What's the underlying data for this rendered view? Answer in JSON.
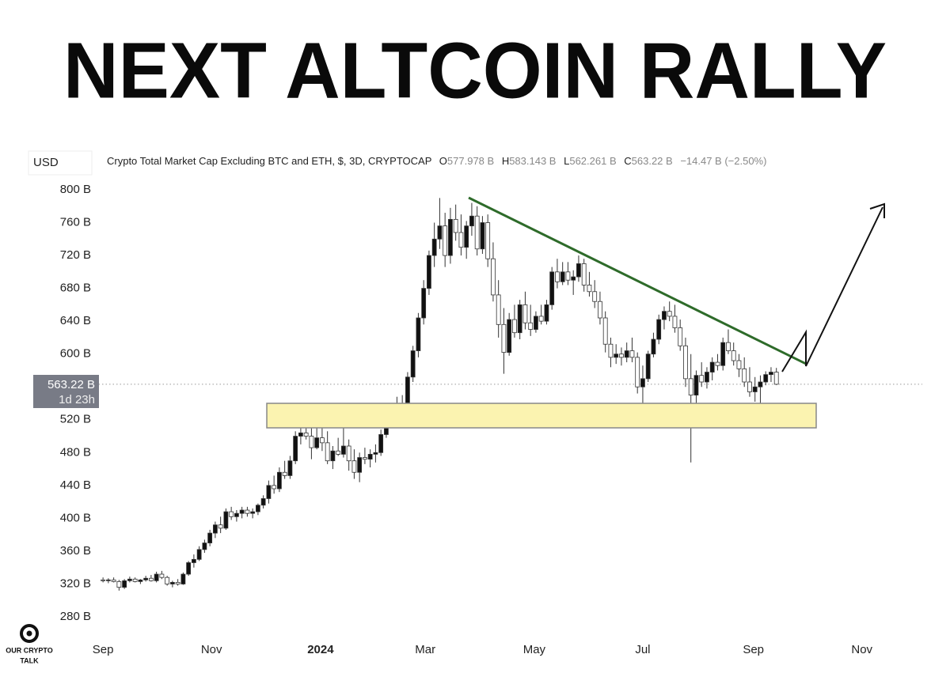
{
  "title": "NEXT ALTCOIN RALLY",
  "header": {
    "currency": "USD",
    "symbol": "Crypto Total Market Cap Excluding BTC and ETH, $, 3D, CRYPTOCAP",
    "ohlc": [
      {
        "key": "O",
        "value": "577.978 B"
      },
      {
        "key": "H",
        "value": "583.143 B"
      },
      {
        "key": "L",
        "value": "562.261 B"
      },
      {
        "key": "C",
        "value": "563.22 B"
      }
    ],
    "change": "−14.47 B (−2.50%)"
  },
  "price_label": {
    "price": "563.22 B",
    "countdown": "1d 23h"
  },
  "logo": {
    "line1": "OUR CRYPTO",
    "line2": "TALK"
  },
  "chart_data": {
    "type": "candlestick",
    "ylim": [
      260,
      810
    ],
    "yticks": [
      {
        "value": 800,
        "label": "800 B"
      },
      {
        "value": 760,
        "label": "760 B"
      },
      {
        "value": 720,
        "label": "720 B"
      },
      {
        "value": 680,
        "label": "680 B"
      },
      {
        "value": 640,
        "label": "640 B"
      },
      {
        "value": 600,
        "label": "600 B"
      },
      {
        "value": 520,
        "label": "520 B"
      },
      {
        "value": 480,
        "label": "480 B"
      },
      {
        "value": 440,
        "label": "440 B"
      },
      {
        "value": 400,
        "label": "400 B"
      },
      {
        "value": 360,
        "label": "360 B"
      },
      {
        "value": 320,
        "label": "320 B"
      },
      {
        "value": 280,
        "label": "280 B"
      }
    ],
    "xlim": [
      -1.5,
      153.3
    ],
    "xticks": [
      {
        "value": 0,
        "label": "Sep"
      },
      {
        "value": 20.3,
        "label": "Nov"
      },
      {
        "value": 40.7,
        "label": "2024"
      },
      {
        "value": 60.3,
        "label": "Mar"
      },
      {
        "value": 80.7,
        "label": "May"
      },
      {
        "value": 101,
        "label": "Jul"
      },
      {
        "value": 121.7,
        "label": "Sep"
      },
      {
        "value": 142,
        "label": "Nov"
      }
    ],
    "up_color": "#111111",
    "down_color": "#ffffff",
    "candles": [
      [
        325,
        328,
        322,
        324
      ],
      [
        324,
        327,
        321,
        325
      ],
      [
        325,
        328,
        322,
        323
      ],
      [
        323,
        325,
        312,
        316
      ],
      [
        316,
        326,
        314,
        324
      ],
      [
        324,
        329,
        322,
        326
      ],
      [
        326,
        328,
        322,
        323
      ],
      [
        323,
        326,
        320,
        325
      ],
      [
        325,
        330,
        323,
        327
      ],
      [
        327,
        331,
        323,
        324
      ],
      [
        324,
        335,
        322,
        332
      ],
      [
        332,
        336,
        326,
        328
      ],
      [
        328,
        330,
        318,
        320
      ],
      [
        320,
        324,
        316,
        322
      ],
      [
        322,
        326,
        318,
        320
      ],
      [
        320,
        334,
        319,
        332
      ],
      [
        332,
        348,
        330,
        346
      ],
      [
        346,
        356,
        340,
        350
      ],
      [
        350,
        366,
        348,
        362
      ],
      [
        362,
        374,
        358,
        370
      ],
      [
        370,
        386,
        366,
        382
      ],
      [
        382,
        396,
        376,
        392
      ],
      [
        392,
        402,
        382,
        388
      ],
      [
        388,
        412,
        386,
        408
      ],
      [
        408,
        414,
        398,
        402
      ],
      [
        402,
        410,
        396,
        406
      ],
      [
        406,
        414,
        400,
        410
      ],
      [
        410,
        414,
        402,
        406
      ],
      [
        406,
        412,
        400,
        408
      ],
      [
        408,
        418,
        404,
        416
      ],
      [
        416,
        428,
        412,
        424
      ],
      [
        424,
        446,
        418,
        440
      ],
      [
        440,
        452,
        430,
        436
      ],
      [
        436,
        462,
        432,
        456
      ],
      [
        456,
        470,
        448,
        452
      ],
      [
        452,
        476,
        448,
        470
      ],
      [
        470,
        506,
        466,
        500
      ],
      [
        500,
        510,
        490,
        504
      ],
      [
        504,
        530,
        496,
        500
      ],
      [
        500,
        512,
        472,
        486
      ],
      [
        486,
        534,
        484,
        498
      ],
      [
        498,
        520,
        482,
        492
      ],
      [
        492,
        506,
        466,
        470
      ],
      [
        470,
        488,
        460,
        482
      ],
      [
        482,
        498,
        476,
        478
      ],
      [
        478,
        512,
        474,
        488
      ],
      [
        488,
        496,
        458,
        470
      ],
      [
        470,
        484,
        448,
        456
      ],
      [
        456,
        480,
        444,
        474
      ],
      [
        474,
        486,
        466,
        472
      ],
      [
        472,
        484,
        462,
        478
      ],
      [
        478,
        490,
        468,
        480
      ],
      [
        480,
        508,
        476,
        502
      ],
      [
        502,
        530,
        498,
        522
      ],
      [
        522,
        540,
        514,
        530
      ],
      [
        530,
        548,
        520,
        528
      ],
      [
        528,
        550,
        522,
        540
      ],
      [
        540,
        578,
        536,
        572
      ],
      [
        572,
        610,
        566,
        604
      ],
      [
        604,
        650,
        596,
        644
      ],
      [
        644,
        690,
        636,
        680
      ],
      [
        680,
        726,
        672,
        720
      ],
      [
        720,
        760,
        706,
        740
      ],
      [
        740,
        790,
        728,
        756
      ],
      [
        756,
        772,
        706,
        720
      ],
      [
        720,
        778,
        710,
        764
      ],
      [
        764,
        782,
        738,
        748
      ],
      [
        748,
        770,
        720,
        730
      ],
      [
        730,
        762,
        716,
        756
      ],
      [
        756,
        784,
        744,
        768
      ],
      [
        768,
        780,
        720,
        728
      ],
      [
        728,
        768,
        722,
        760
      ],
      [
        760,
        770,
        706,
        716
      ],
      [
        716,
        736,
        664,
        672
      ],
      [
        672,
        690,
        620,
        636
      ],
      [
        636,
        656,
        576,
        602
      ],
      [
        602,
        650,
        598,
        642
      ],
      [
        642,
        660,
        620,
        626
      ],
      [
        626,
        666,
        618,
        660
      ],
      [
        660,
        676,
        630,
        638
      ],
      [
        638,
        660,
        622,
        630
      ],
      [
        630,
        652,
        626,
        646
      ],
      [
        646,
        660,
        636,
        640
      ],
      [
        640,
        666,
        636,
        660
      ],
      [
        660,
        706,
        654,
        700
      ],
      [
        700,
        716,
        680,
        688
      ],
      [
        688,
        712,
        684,
        700
      ],
      [
        700,
        712,
        684,
        690
      ],
      [
        690,
        702,
        672,
        694
      ],
      [
        694,
        720,
        688,
        710
      ],
      [
        710,
        716,
        676,
        684
      ],
      [
        684,
        700,
        670,
        676
      ],
      [
        676,
        690,
        656,
        664
      ],
      [
        664,
        676,
        636,
        644
      ],
      [
        644,
        652,
        602,
        612
      ],
      [
        612,
        620,
        584,
        596
      ],
      [
        596,
        612,
        588,
        600
      ],
      [
        600,
        608,
        586,
        596
      ],
      [
        596,
        614,
        590,
        604
      ],
      [
        604,
        620,
        590,
        596
      ],
      [
        596,
        602,
        552,
        560
      ],
      [
        560,
        586,
        512,
        570
      ],
      [
        570,
        604,
        566,
        600
      ],
      [
        600,
        626,
        596,
        618
      ],
      [
        618,
        648,
        612,
        642
      ],
      [
        642,
        658,
        630,
        652
      ],
      [
        652,
        664,
        640,
        646
      ],
      [
        646,
        660,
        626,
        632
      ],
      [
        632,
        642,
        604,
        610
      ],
      [
        610,
        620,
        560,
        570
      ],
      [
        570,
        600,
        468,
        550
      ],
      [
        550,
        580,
        540,
        574
      ],
      [
        574,
        590,
        560,
        566
      ],
      [
        566,
        584,
        558,
        578
      ],
      [
        578,
        596,
        568,
        590
      ],
      [
        590,
        600,
        580,
        586
      ],
      [
        586,
        620,
        580,
        614
      ],
      [
        614,
        630,
        600,
        604
      ],
      [
        604,
        614,
        586,
        592
      ],
      [
        592,
        600,
        572,
        582
      ],
      [
        582,
        596,
        560,
        566
      ],
      [
        566,
        584,
        548,
        554
      ],
      [
        554,
        572,
        542,
        560
      ],
      [
        560,
        574,
        538,
        566
      ],
      [
        566,
        579,
        562,
        575
      ],
      [
        575,
        584,
        566,
        577.978
      ],
      [
        577.978,
        583.143,
        562.261,
        563.22
      ]
    ]
  }
}
